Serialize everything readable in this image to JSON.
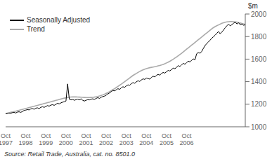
{
  "chart_data": {
    "type": "line",
    "ylabel": "$m",
    "source": "Source: Retail Trade, Australia, cat. no. 8501.0",
    "legend": "upper left",
    "grid": false,
    "categories": [
      "Oct\n1997",
      null,
      null,
      null,
      null,
      null,
      null,
      null,
      null,
      null,
      null,
      null,
      "Oct\n1998",
      null,
      null,
      null,
      null,
      null,
      null,
      null,
      null,
      null,
      null,
      null,
      "Oct\n1999",
      null,
      null,
      null,
      null,
      null,
      null,
      null,
      null,
      null,
      null,
      null,
      "Oct\n2000",
      null,
      null,
      null,
      null,
      null,
      null,
      null,
      null,
      null,
      null,
      null,
      "Oct\n2001",
      null,
      null,
      null,
      null,
      null,
      null,
      null,
      null,
      null,
      null,
      null,
      "Oct\n2002",
      null,
      null,
      null,
      null,
      null,
      null,
      null,
      null,
      null,
      null,
      null,
      "Oct\n2003",
      null,
      null,
      null,
      null,
      null,
      null,
      null,
      null,
      null,
      null,
      null,
      "Oct\n2004",
      null,
      null,
      null,
      null,
      null,
      null,
      null,
      null,
      null,
      null,
      null,
      "Oct\n2005",
      null,
      null,
      null,
      null,
      null,
      null,
      null,
      null,
      null,
      null,
      null,
      "Oct\n2006",
      null,
      null,
      null,
      null,
      null,
      null,
      null,
      null,
      null,
      null,
      null,
      null,
      null,
      null,
      null,
      null,
      null,
      null,
      null,
      null,
      null,
      null,
      null,
      null,
      null,
      null,
      null,
      null,
      null,
      null,
      null,
      null,
      null,
      null,
      null
    ],
    "ylim": [
      1000,
      2000
    ],
    "yticks": [
      1000,
      1200,
      1400,
      1600,
      1800,
      2000
    ],
    "series": [
      {
        "name": "Seasonally Adjusted",
        "color": "#000000",
        "values": [
          1115,
          1118,
          1122,
          1119,
          1125,
          1128,
          1122,
          1130,
          1133,
          1128,
          1135,
          1145,
          1148,
          1152,
          1150,
          1158,
          1162,
          1155,
          1165,
          1168,
          1162,
          1172,
          1178,
          1172,
          1180,
          1188,
          1183,
          1192,
          1196,
          1190,
          1200,
          1208,
          1203,
          1212,
          1218,
          1222,
          1228,
          1380,
          1245,
          1238,
          1242,
          1235,
          1240,
          1245,
          1238,
          1248,
          1235,
          1228,
          1235,
          1240,
          1238,
          1245,
          1248,
          1242,
          1252,
          1258,
          1252,
          1262,
          1268,
          1272,
          1280,
          1292,
          1300,
          1312,
          1322,
          1318,
          1328,
          1338,
          1332,
          1345,
          1355,
          1350,
          1362,
          1372,
          1368,
          1382,
          1392,
          1386,
          1398,
          1408,
          1402,
          1415,
          1425,
          1420,
          1432,
          1428,
          1422,
          1438,
          1448,
          1442,
          1455,
          1465,
          1458,
          1472,
          1482,
          1476,
          1488,
          1500,
          1495,
          1508,
          1520,
          1515,
          1528,
          1542,
          1535,
          1550,
          1562,
          1555,
          1568,
          1582,
          1575,
          1590,
          1602,
          1595,
          1648,
          1658,
          1652,
          1668,
          1695,
          1720,
          1738,
          1752,
          1768,
          1785,
          1798,
          1812,
          1828,
          1845,
          1825,
          1840,
          1858,
          1878,
          1895,
          1910,
          1895,
          1905,
          1918,
          1928,
          1912,
          1922,
          1905,
          1912,
          1900,
          1905
        ]
      },
      {
        "name": "Trend",
        "color": "#aaaaaa",
        "values": [
          1117,
          1121,
          1124,
          1128,
          1131,
          1135,
          1138,
          1142,
          1146,
          1150,
          1154,
          1158,
          1162,
          1166,
          1170,
          1174,
          1178,
          1182,
          1186,
          1190,
          1194,
          1198,
          1202,
          1206,
          1210,
          1214,
          1218,
          1222,
          1226,
          1230,
          1234,
          1238,
          1242,
          1246,
          1250,
          1254,
          1257,
          1260,
          1262,
          1264,
          1265,
          1265,
          1265,
          1264,
          1263,
          1262,
          1261,
          1260,
          1259,
          1259,
          1259,
          1260,
          1261,
          1263,
          1266,
          1269,
          1273,
          1278,
          1283,
          1289,
          1296,
          1303,
          1311,
          1320,
          1329,
          1338,
          1348,
          1358,
          1368,
          1378,
          1389,
          1400,
          1411,
          1422,
          1433,
          1444,
          1455,
          1464,
          1473,
          1482,
          1490,
          1498,
          1505,
          1511,
          1516,
          1520,
          1524,
          1527,
          1530,
          1533,
          1536,
          1540,
          1544,
          1548,
          1553,
          1559,
          1566,
          1573,
          1581,
          1590,
          1599,
          1609,
          1619,
          1630,
          1641,
          1652,
          1664,
          1676,
          1688,
          1700,
          1712,
          1724,
          1736,
          1748,
          1760,
          1772,
          1784,
          1796,
          1808,
          1820,
          1832,
          1844,
          1856,
          1868,
          1879,
          1888,
          1896,
          1903,
          1910,
          1917,
          1922,
          1927,
          1930,
          1932,
          1933,
          1933,
          1932,
          1930,
          1928,
          1924,
          1920,
          1916,
          1912,
          1908
        ]
      }
    ]
  }
}
